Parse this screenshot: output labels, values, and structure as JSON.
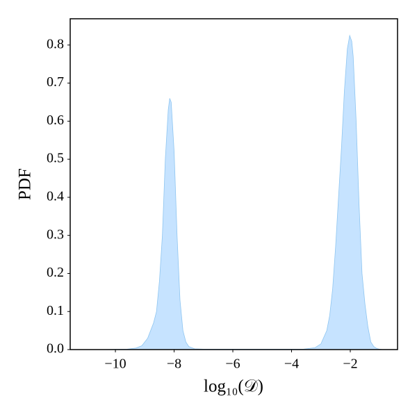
{
  "chart_data": {
    "type": "area",
    "xlabel": "log₁₀(𝒟)",
    "ylabel": "PDF",
    "color": "#c6e3ff",
    "line_color": "#8ec5f0",
    "x": [
      -11.5,
      -10.5,
      -9.6,
      -9.3,
      -9.1,
      -8.9,
      -8.7,
      -8.6,
      -8.5,
      -8.4,
      -8.3,
      -8.2,
      -8.15,
      -8.1,
      -8.0,
      -7.9,
      -7.8,
      -7.7,
      -7.6,
      -7.5,
      -7.3,
      -7.0,
      -3.6,
      -3.2,
      -3.0,
      -2.8,
      -2.7,
      -2.6,
      -2.5,
      -2.4,
      -2.3,
      -2.2,
      -2.1,
      -2.02,
      -1.95,
      -1.9,
      -1.8,
      -1.7,
      -1.6,
      -1.5,
      -1.4,
      -1.3,
      -1.2,
      -1.1,
      -1.0,
      -0.9
    ],
    "values": [
      0,
      0,
      0.001,
      0.004,
      0.01,
      0.03,
      0.07,
      0.1,
      0.18,
      0.3,
      0.5,
      0.63,
      0.66,
      0.65,
      0.52,
      0.3,
      0.13,
      0.05,
      0.02,
      0.008,
      0.002,
      0.001,
      0.001,
      0.005,
      0.015,
      0.05,
      0.09,
      0.16,
      0.27,
      0.4,
      0.53,
      0.68,
      0.79,
      0.825,
      0.81,
      0.77,
      0.6,
      0.38,
      0.2,
      0.12,
      0.06,
      0.02,
      0.008,
      0.003,
      0.001,
      0
    ],
    "xlim": [
      -11.54,
      -0.39
    ],
    "xticks": [
      {
        "value": -10,
        "label": "−10"
      },
      {
        "value": -8,
        "label": "−8"
      },
      {
        "value": -6,
        "label": "−6"
      },
      {
        "value": -4,
        "label": "−4"
      },
      {
        "value": -2,
        "label": "−2"
      }
    ],
    "ylim": [
      0,
      0.869
    ],
    "yticks": [
      {
        "value": 0,
        "label": "0.0"
      },
      0.1,
      0.2,
      0.3,
      0.4,
      0.5,
      0.6,
      0.7,
      0.8
    ]
  }
}
